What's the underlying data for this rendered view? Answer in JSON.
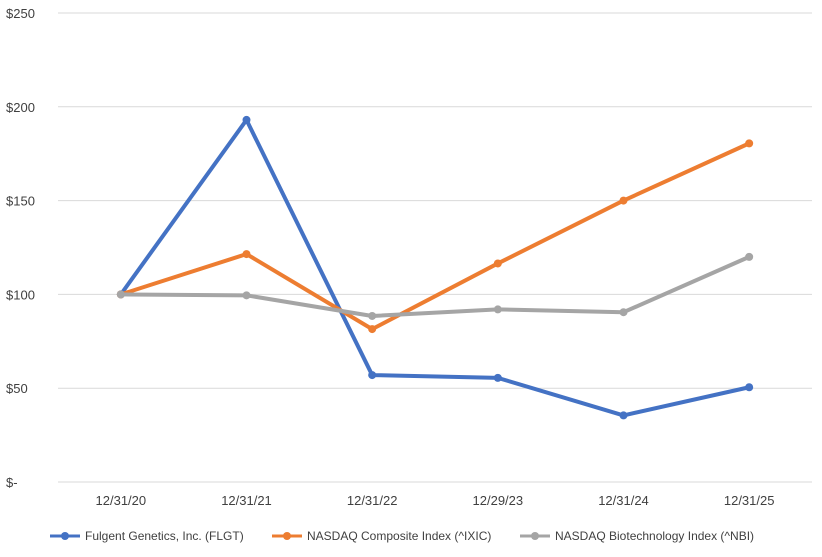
{
  "chart_data": {
    "type": "line",
    "categories": [
      "12/31/20",
      "12/31/21",
      "12/31/22",
      "12/29/23",
      "12/31/24",
      "12/31/25"
    ],
    "ylim": [
      0,
      250
    ],
    "yticks": [
      0,
      50,
      100,
      150,
      200,
      250
    ],
    "ytick_labels": [
      "$-",
      "$50",
      "$100",
      "$150",
      "$200",
      "$250"
    ],
    "grid": true,
    "legend": "bottom",
    "series": [
      {
        "name": "Fulgent Genetics, Inc. (FLGT)",
        "color": "#4472c4",
        "values": [
          100,
          193,
          57,
          55.5,
          35.5,
          50.5
        ]
      },
      {
        "name": "NASDAQ Composite Index (^IXIC)",
        "color": "#ed7d31",
        "values": [
          100,
          121.5,
          81.5,
          116.5,
          150,
          180.5
        ]
      },
      {
        "name": "NASDAQ Biotechnology Index (^NBI)",
        "color": "#a5a5a5",
        "values": [
          100,
          99.5,
          88.5,
          92,
          90.5,
          120
        ]
      }
    ]
  }
}
